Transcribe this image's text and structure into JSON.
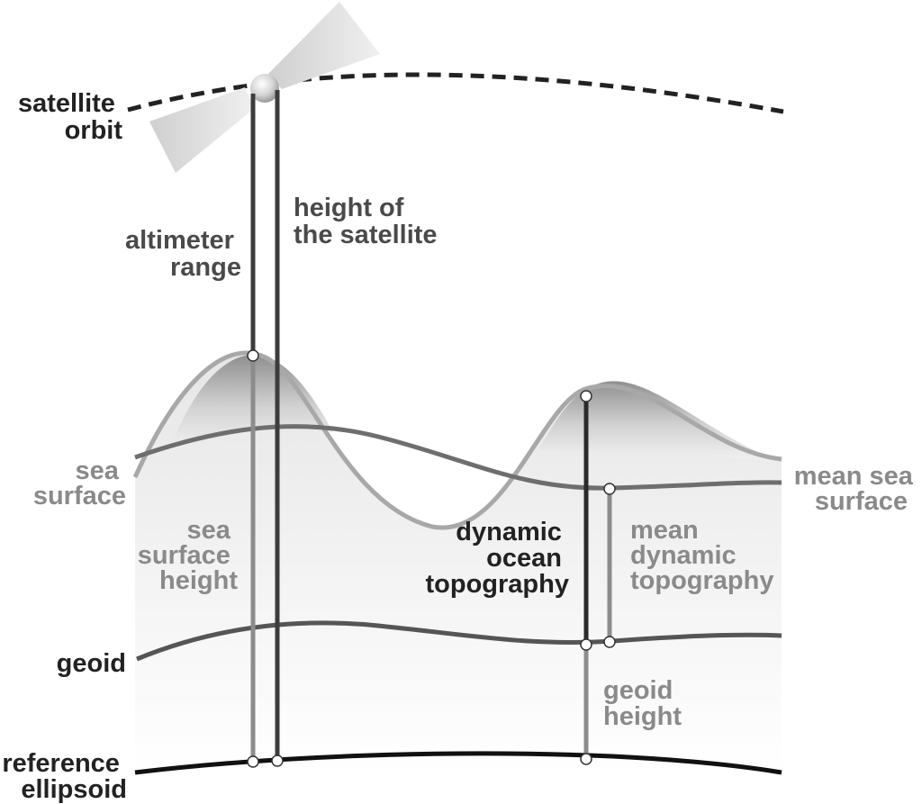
{
  "labels": {
    "satellite_orbit": [
      "satellite",
      "orbit"
    ],
    "altimeter_range": [
      "altimeter",
      "range"
    ],
    "height_of_satellite": [
      "height of",
      "the satellite"
    ],
    "sea_surface": [
      "sea",
      "surface"
    ],
    "sea_surface_height": [
      "sea",
      "surface",
      "height"
    ],
    "dynamic_ocean_topography": [
      "dynamic",
      "ocean",
      "topography"
    ],
    "mean_sea_surface": [
      "mean sea",
      "surface"
    ],
    "mean_dynamic_topography": [
      "mean",
      "dynamic",
      "topography"
    ],
    "geoid": [
      "geoid"
    ],
    "geoid_height": [
      "geoid",
      "height"
    ],
    "reference_ellipsoid": [
      "reference",
      "ellipsoid"
    ]
  },
  "colors": {
    "ellipsoid": "#111111",
    "geoid": "#555555",
    "mean_sea_surface": "#6e6e6e",
    "sea_surface": "#a8a8a8",
    "dark_line": "#3c3c3c",
    "light_line": "#8c8c8c"
  }
}
